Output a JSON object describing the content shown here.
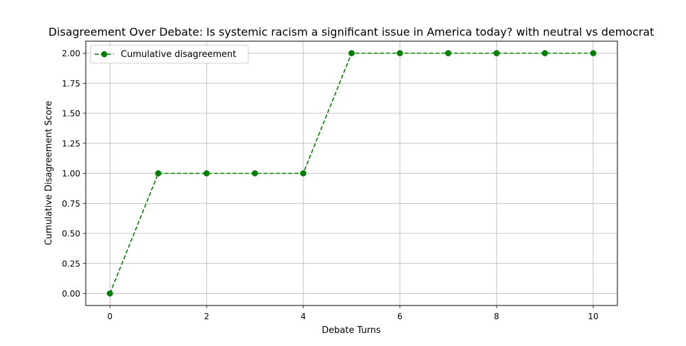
{
  "chart_data": {
    "type": "line",
    "title": "Disagreement Over Debate: Is systemic racism a significant issue in America today? with neutral vs democrat",
    "xlabel": "Debate Turns",
    "ylabel": "Cumulative Disagreement Score",
    "xlim": [
      -0.5,
      10.5
    ],
    "ylim": [
      -0.1,
      2.1
    ],
    "x_ticks": [
      0,
      2,
      4,
      6,
      8,
      10
    ],
    "x_tick_labels": [
      "0",
      "2",
      "4",
      "6",
      "8",
      "10"
    ],
    "y_ticks": [
      0,
      0.25,
      0.5,
      0.75,
      1.0,
      1.25,
      1.5,
      1.75,
      2.0
    ],
    "y_tick_labels": [
      "0.00",
      "0.25",
      "0.50",
      "0.75",
      "1.00",
      "1.25",
      "1.50",
      "1.75",
      "2.00"
    ],
    "grid": true,
    "legend_position": "top-left",
    "series": [
      {
        "name": "Cumulative disagreement",
        "color": "#008000",
        "line_style": "dashed",
        "marker": "circle",
        "x": [
          0,
          1,
          2,
          3,
          4,
          5,
          6,
          7,
          8,
          9,
          10
        ],
        "y": [
          0,
          1,
          1,
          1,
          1,
          2,
          2,
          2,
          2,
          2,
          2
        ]
      }
    ]
  }
}
